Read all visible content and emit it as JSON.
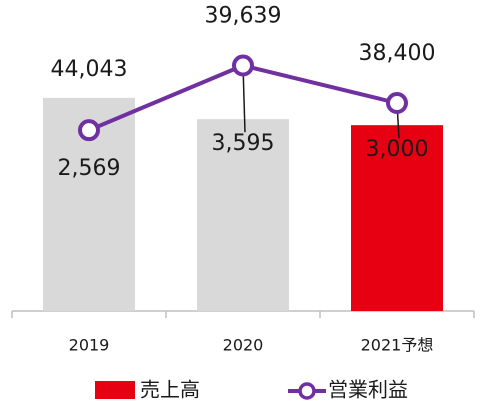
{
  "chart_data": {
    "type": "bar",
    "categories": [
      "2019",
      "2020",
      "2021予想"
    ],
    "ylim": [
      0,
      56000
    ],
    "y2lim": [
      -300,
      4000
    ],
    "series": [
      {
        "name": "売上高",
        "type": "bar",
        "color": "#e60012",
        "colors": [
          "#d9d9d9",
          "#d9d9d9",
          "#e60012"
        ],
        "values": [
          44043,
          39639,
          38400
        ],
        "value_labels": [
          "44,043",
          "39,639",
          "38,400"
        ]
      },
      {
        "name": "営業利益",
        "type": "line",
        "axis": "y2",
        "color": "#7030a0",
        "values": [
          2569,
          3595,
          3000
        ],
        "value_labels": [
          "2,569",
          "3,595",
          "3,000"
        ]
      }
    ],
    "legend": "bottom"
  }
}
